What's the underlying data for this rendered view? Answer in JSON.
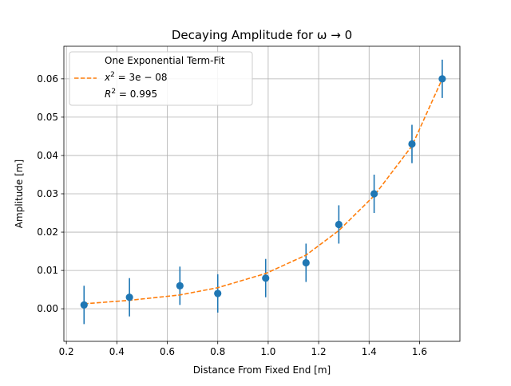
{
  "chart_data": {
    "type": "scatter",
    "title": "Decaying Amplitude for ω → 0",
    "xlabel": "Distance From Fixed End [m]",
    "ylabel": "Amplitude  [m]",
    "xlim": [
      0.19,
      1.76
    ],
    "ylim": [
      -0.0085,
      0.0685
    ],
    "xticks": [
      0.2,
      0.4,
      0.6,
      0.8,
      1.0,
      1.2,
      1.4,
      1.6
    ],
    "xtick_labels": [
      "0.2",
      "0.4",
      "0.6",
      "0.8",
      "1.0",
      "1.2",
      "1.4",
      "1.6"
    ],
    "yticks": [
      0.0,
      0.01,
      0.02,
      0.03,
      0.04,
      0.05,
      0.06
    ],
    "ytick_labels": [
      "0.00",
      "0.01",
      "0.02",
      "0.03",
      "0.04",
      "0.05",
      "0.06"
    ],
    "grid": true,
    "legend_position": "top-left",
    "legend": {
      "line1": "One Exponential Term-Fit",
      "line2_base": "x",
      "line2_sup": "2",
      "line2_rest": " = 3e − 08",
      "line3_base": "R",
      "line3_sup": "2",
      "line3_rest": " = 0.995"
    },
    "series": [
      {
        "kind": "measurements",
        "color": "#1f77b4",
        "x": [
          0.27,
          0.45,
          0.65,
          0.8,
          0.99,
          1.15,
          1.28,
          1.42,
          1.57,
          1.69
        ],
        "y": [
          0.001,
          0.003,
          0.006,
          0.004,
          0.008,
          0.012,
          0.022,
          0.03,
          0.043,
          0.06
        ],
        "yerr": 0.005
      },
      {
        "kind": "fit",
        "color": "#ff7f0e",
        "style": "dashed",
        "x": [
          0.27,
          0.45,
          0.65,
          0.8,
          0.99,
          1.15,
          1.28,
          1.42,
          1.57,
          1.69
        ],
        "y": [
          0.0013,
          0.0022,
          0.0036,
          0.0055,
          0.0092,
          0.014,
          0.0204,
          0.0295,
          0.0425,
          0.06
        ]
      }
    ]
  }
}
